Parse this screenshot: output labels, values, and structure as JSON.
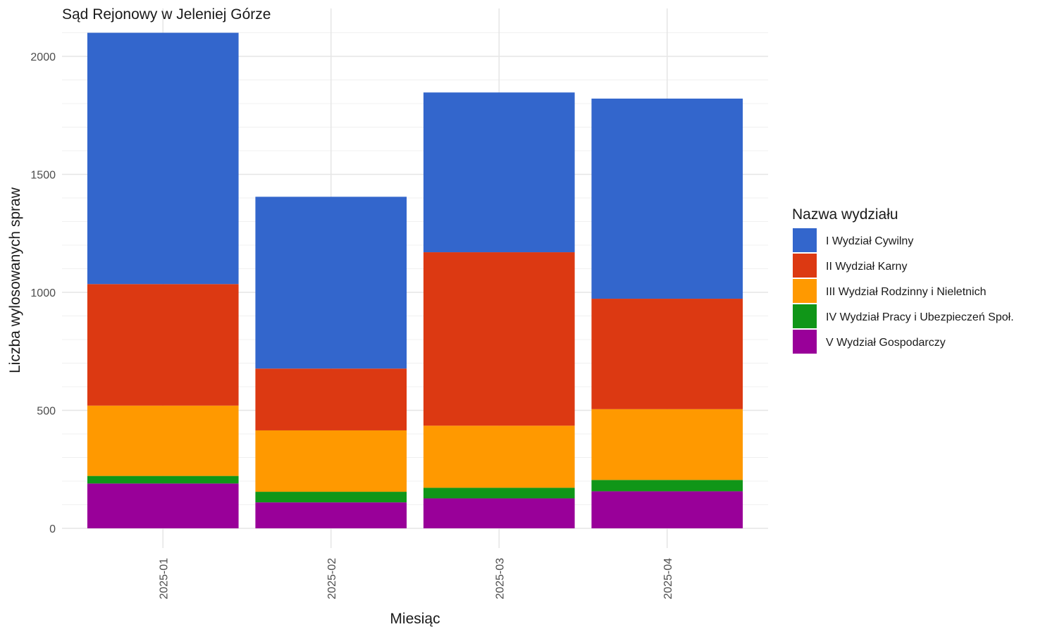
{
  "chart_data": {
    "type": "bar",
    "stacked": true,
    "title": "Sąd Rejonowy w Jeleniej Górze",
    "xlabel": "Miesiąc",
    "ylabel": "Liczba wylosowanych spraw",
    "categories": [
      "2025-01",
      "2025-02",
      "2025-03",
      "2025-04"
    ],
    "ylim": [
      0,
      2100
    ],
    "yticks": [
      0,
      500,
      1000,
      1500,
      2000
    ],
    "grid": true,
    "legend": {
      "title": "Nazwa wydziału",
      "position": "right"
    },
    "series": [
      {
        "name": "V Wydział Gospodarczy",
        "color": "#990099",
        "values": [
          190,
          110,
          127,
          157
        ]
      },
      {
        "name": "IV Wydział Pracy i Ubezpieczeń Społ.",
        "color": "#109618",
        "values": [
          32,
          45,
          45,
          48
        ]
      },
      {
        "name": "III Wydział Rodzinny i Nieletnich",
        "color": "#FF9900",
        "values": [
          298,
          260,
          263,
          300
        ]
      },
      {
        "name": "II Wydział Karny",
        "color": "#DC3912",
        "values": [
          515,
          262,
          735,
          468
        ]
      },
      {
        "name": "I Wydział Cywilny",
        "color": "#3366CC",
        "values": [
          1065,
          728,
          677,
          848
        ]
      }
    ],
    "legend_order": [
      "I Wydział Cywilny",
      "II Wydział Karny",
      "III Wydział Rodzinny i Nieletnich",
      "IV Wydział Pracy i Ubezpieczeń Społ.",
      "V Wydział Gospodarczy"
    ]
  }
}
